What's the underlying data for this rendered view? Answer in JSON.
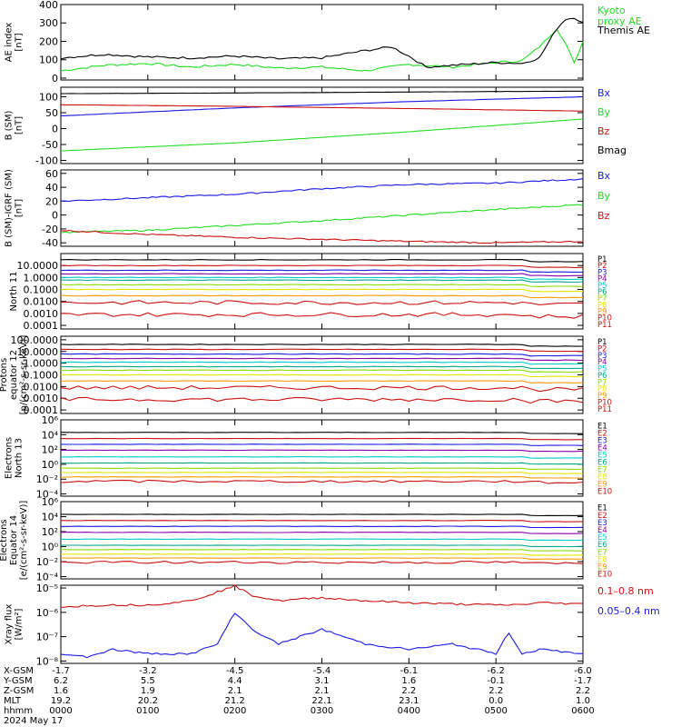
{
  "colors": {
    "black": "#000000",
    "green": "#22dd22",
    "red": "#cc1111",
    "blue": "#1a1ae6",
    "purple": "#8800aa",
    "cyan": "#00cccc",
    "teal": "#00aa88",
    "yellow": "#e6e600",
    "orange": "#ff9900",
    "magenta": "#cc22cc",
    "lime": "#88dd00"
  },
  "chart_data": [
    {
      "id": "ae",
      "type": "line",
      "ylabel": "AE index\n[nT]",
      "yticks": [
        0,
        100,
        200,
        300,
        400
      ],
      "ylim": [
        -10,
        400
      ],
      "log": false,
      "series": [
        {
          "name": "Kyoto\nproxy AE",
          "color": "green",
          "x": [
            0,
            0.5,
            1,
            1.5,
            2,
            2.5,
            3,
            3.5,
            4,
            4.5,
            5,
            5.3,
            5.5,
            5.7,
            5.8,
            5.9,
            6
          ],
          "y": [
            40,
            70,
            80,
            60,
            75,
            55,
            60,
            40,
            75,
            60,
            85,
            95,
            170,
            270,
            190,
            80,
            200
          ]
        },
        {
          "name": "Themis AE",
          "color": "black",
          "x": [
            0,
            0.5,
            1,
            1.5,
            2,
            2.5,
            3,
            3.5,
            3.8,
            4,
            4.2,
            4.5,
            5,
            5.3,
            5.5,
            5.7,
            5.8,
            5.9,
            6
          ],
          "y": [
            110,
            130,
            115,
            110,
            120,
            105,
            110,
            150,
            170,
            120,
            60,
            70,
            85,
            80,
            110,
            270,
            320,
            330,
            300
          ]
        }
      ]
    },
    {
      "id": "bsm",
      "type": "line",
      "ylabel": "B (SM)\n[nT]",
      "yticks": [
        -100,
        -50,
        0,
        50,
        100
      ],
      "ylim": [
        -110,
        130
      ],
      "log": false,
      "series": [
        {
          "name": "Bx",
          "color": "blue",
          "x": [
            0,
            2,
            4,
            6
          ],
          "y": [
            40,
            65,
            85,
            100
          ]
        },
        {
          "name": "By",
          "color": "green",
          "x": [
            0,
            2,
            4,
            6
          ],
          "y": [
            -70,
            -45,
            -10,
            30
          ]
        },
        {
          "name": "Bz",
          "color": "red",
          "x": [
            0,
            2,
            4,
            6
          ],
          "y": [
            75,
            70,
            63,
            55
          ]
        },
        {
          "name": "Bmag",
          "color": "black",
          "x": [
            0,
            2,
            4,
            6
          ],
          "y": [
            110,
            112,
            115,
            118
          ]
        }
      ]
    },
    {
      "id": "bdiff",
      "type": "line",
      "ylabel": "B (SM)-IGRF (SM)\n[nT]",
      "yticks": [
        -40,
        -20,
        0,
        20,
        40,
        60
      ],
      "ylim": [
        -45,
        65
      ],
      "log": false,
      "series": [
        {
          "name": "Bx",
          "color": "blue",
          "x": [
            0,
            1,
            2,
            3,
            4,
            5,
            6
          ],
          "y": [
            20,
            25,
            30,
            38,
            44,
            46,
            52
          ]
        },
        {
          "name": "By",
          "color": "green",
          "x": [
            0,
            1,
            2,
            3,
            4,
            5,
            6
          ],
          "y": [
            -25,
            -22,
            -15,
            -8,
            0,
            8,
            15
          ]
        },
        {
          "name": "Bz",
          "color": "red",
          "x": [
            0,
            1,
            2,
            3,
            4,
            5,
            6
          ],
          "y": [
            -22,
            -28,
            -32,
            -35,
            -38,
            -40,
            -38
          ]
        }
      ]
    },
    {
      "id": "pn",
      "type": "line",
      "ylabel": "North 11",
      "ytick_labels": [
        "0.0001",
        "0.0010",
        "0.0100",
        "0.1000",
        "1.0000",
        "10.0000"
      ],
      "yticks": [
        0.0001,
        0.001,
        0.01,
        0.1,
        1,
        10
      ],
      "ylim": [
        5e-05,
        100
      ],
      "log": true,
      "series": [
        {
          "name": "P1",
          "color": "black",
          "level": 30
        },
        {
          "name": "P2",
          "color": "red",
          "level": 10
        },
        {
          "name": "P3",
          "color": "blue",
          "level": 4
        },
        {
          "name": "P4",
          "color": "purple",
          "level": 2
        },
        {
          "name": "P5",
          "color": "cyan",
          "level": 1
        },
        {
          "name": "P6",
          "color": "teal",
          "level": 0.6
        },
        {
          "name": "P7",
          "color": "lime",
          "level": 0.25
        },
        {
          "name": "P8",
          "color": "yellow",
          "level": 0.1
        },
        {
          "name": "P9",
          "color": "orange",
          "level": 0.03
        },
        {
          "name": "P10",
          "color": "red",
          "level": 0.008
        },
        {
          "name": "P11",
          "color": "red",
          "level": 0.0008
        }
      ]
    },
    {
      "id": "pe",
      "type": "line",
      "ylabel": "Protons\nequator 12\n[p/(cm²-s-sr-keV)]",
      "ytick_labels": [
        "0.0001",
        "0.0010",
        "0.0100",
        "0.1000",
        "1.0000",
        "10.0000",
        "100.0000"
      ],
      "yticks": [
        0.0001,
        0.001,
        0.01,
        0.1,
        1,
        10,
        100
      ],
      "ylim": [
        5e-05,
        200
      ],
      "log": true,
      "series": [
        {
          "name": "P1",
          "color": "black",
          "level": 40
        },
        {
          "name": "P2",
          "color": "red",
          "level": 15
        },
        {
          "name": "P3",
          "color": "blue",
          "level": 6
        },
        {
          "name": "P4",
          "color": "purple",
          "level": 2.5
        },
        {
          "name": "P5",
          "color": "cyan",
          "level": 1.2
        },
        {
          "name": "P6",
          "color": "teal",
          "level": 0.5
        },
        {
          "name": "P7",
          "color": "lime",
          "level": 0.25
        },
        {
          "name": "P8",
          "color": "yellow",
          "level": 0.1
        },
        {
          "name": "P9",
          "color": "orange",
          "level": 0.03
        },
        {
          "name": "P10",
          "color": "red",
          "level": 0.008
        },
        {
          "name": "P11",
          "color": "red",
          "level": 0.0008
        }
      ]
    },
    {
      "id": "en",
      "type": "line",
      "ylabel": "Electrons\nNorth 13",
      "ytick_labels": [
        "10⁻⁴",
        "10⁻²",
        "10⁰",
        "10²",
        "10⁴",
        "10⁶"
      ],
      "yticks": [
        0.0001,
        0.01,
        1,
        100.0,
        10000.0,
        1000000.0
      ],
      "ylim": [
        5e-05,
        1000000.0
      ],
      "log": true,
      "series": [
        {
          "name": "E1",
          "color": "black",
          "level": 20000
        },
        {
          "name": "E2",
          "color": "red",
          "level": 3000
        },
        {
          "name": "E3",
          "color": "blue",
          "level": 500
        },
        {
          "name": "E4",
          "color": "purple",
          "level": 80
        },
        {
          "name": "E5",
          "color": "cyan",
          "level": 10
        },
        {
          "name": "E6",
          "color": "teal",
          "level": 1.5
        },
        {
          "name": "E7",
          "color": "lime",
          "level": 0.3
        },
        {
          "name": "E8",
          "color": "yellow",
          "level": 0.08
        },
        {
          "name": "E9",
          "color": "orange",
          "level": 0.02
        },
        {
          "name": "E10",
          "color": "red",
          "level": 0.005
        }
      ]
    },
    {
      "id": "ee",
      "type": "line",
      "ylabel": "Electrons\nEquator 14\n[e/(cm²-s-sr-keV)]",
      "ytick_labels": [
        "10⁻⁴",
        "10⁻²",
        "10⁰",
        "10²",
        "10⁴",
        "10⁶"
      ],
      "yticks": [
        0.0001,
        0.01,
        1,
        100.0,
        10000.0,
        1000000.0
      ],
      "ylim": [
        5e-05,
        1000000.0
      ],
      "log": true,
      "series": [
        {
          "name": "E1",
          "color": "black",
          "level": 20000
        },
        {
          "name": "E2",
          "color": "red",
          "level": 3000
        },
        {
          "name": "E3",
          "color": "blue",
          "level": 500
        },
        {
          "name": "E4",
          "color": "purple",
          "level": 80
        },
        {
          "name": "E5",
          "color": "cyan",
          "level": 10
        },
        {
          "name": "E6",
          "color": "teal",
          "level": 1.5
        },
        {
          "name": "E7",
          "color": "lime",
          "level": 0.4
        },
        {
          "name": "E8",
          "color": "yellow",
          "level": 0.1
        },
        {
          "name": "E9",
          "color": "orange",
          "level": 0.03
        },
        {
          "name": "E10",
          "color": "red",
          "level": 0.008
        }
      ]
    },
    {
      "id": "xray",
      "type": "line",
      "ylabel": "Xray flux\n[W/m²]",
      "ytick_labels": [
        "10⁻⁸",
        "10⁻⁷",
        "10⁻⁶",
        "10⁻⁵"
      ],
      "yticks": [
        1e-08,
        1e-07,
        1e-06,
        1e-05
      ],
      "ylim": [
        8e-09,
        1.3e-05
      ],
      "log": true,
      "series": [
        {
          "name": "0.1–0.8 nm",
          "color": "red",
          "x": [
            0,
            0.5,
            1,
            1.5,
            2,
            2.2,
            2.5,
            3,
            3.5,
            4,
            4.5,
            5,
            5.3,
            5.5,
            6
          ],
          "y": [
            1.7e-06,
            2e-06,
            2e-06,
            3e-06,
            1.2e-05,
            5e-06,
            3e-06,
            4e-06,
            3e-06,
            2.5e-06,
            2.2e-06,
            2e-06,
            2.1e-06,
            2.5e-06,
            2.2e-06
          ]
        },
        {
          "name": "0.05–0.4 nm",
          "color": "blue",
          "x": [
            0,
            0.3,
            0.6,
            1,
            1.5,
            1.8,
            2,
            2.2,
            2.5,
            3,
            3.5,
            4,
            4.5,
            5,
            5.15,
            5.3,
            5.5,
            6
          ],
          "y": [
            2e-08,
            1.5e-08,
            3e-08,
            2e-08,
            2e-08,
            5e-08,
            1e-06,
            2e-07,
            5e-08,
            2e-07,
            5e-08,
            3e-08,
            5e-08,
            2e-08,
            1.5e-07,
            2e-08,
            3e-08,
            2e-08
          ]
        }
      ]
    }
  ],
  "xaxis": {
    "row_labels": [
      "X-GSM",
      "Y-GSM",
      "Z-GSM",
      "MLT",
      "hhmm",
      "2024 May 17"
    ],
    "ticks": [
      {
        "x": 0,
        "vals": [
          "-1.7",
          "6.2",
          "1.6",
          "19.2",
          "0000"
        ]
      },
      {
        "x": 1,
        "vals": [
          "-3.2",
          "5.5",
          "1.9",
          "20.2",
          "0100"
        ]
      },
      {
        "x": 2,
        "vals": [
          "-4.5",
          "4.4",
          "2.1",
          "21.2",
          "0200"
        ]
      },
      {
        "x": 3,
        "vals": [
          "-5.4",
          "3.1",
          "2.1",
          "22.1",
          "0300"
        ]
      },
      {
        "x": 4,
        "vals": [
          "-6.1",
          "1.6",
          "2.2",
          "23.1",
          "0400"
        ]
      },
      {
        "x": 5,
        "vals": [
          "-6.2",
          "-0.1",
          "2.2",
          "0.0",
          "0500"
        ]
      },
      {
        "x": 6,
        "vals": [
          "-6.0",
          "-1.7",
          "2.2",
          "1.0",
          "0600"
        ]
      }
    ],
    "xlim": [
      0,
      6
    ]
  }
}
